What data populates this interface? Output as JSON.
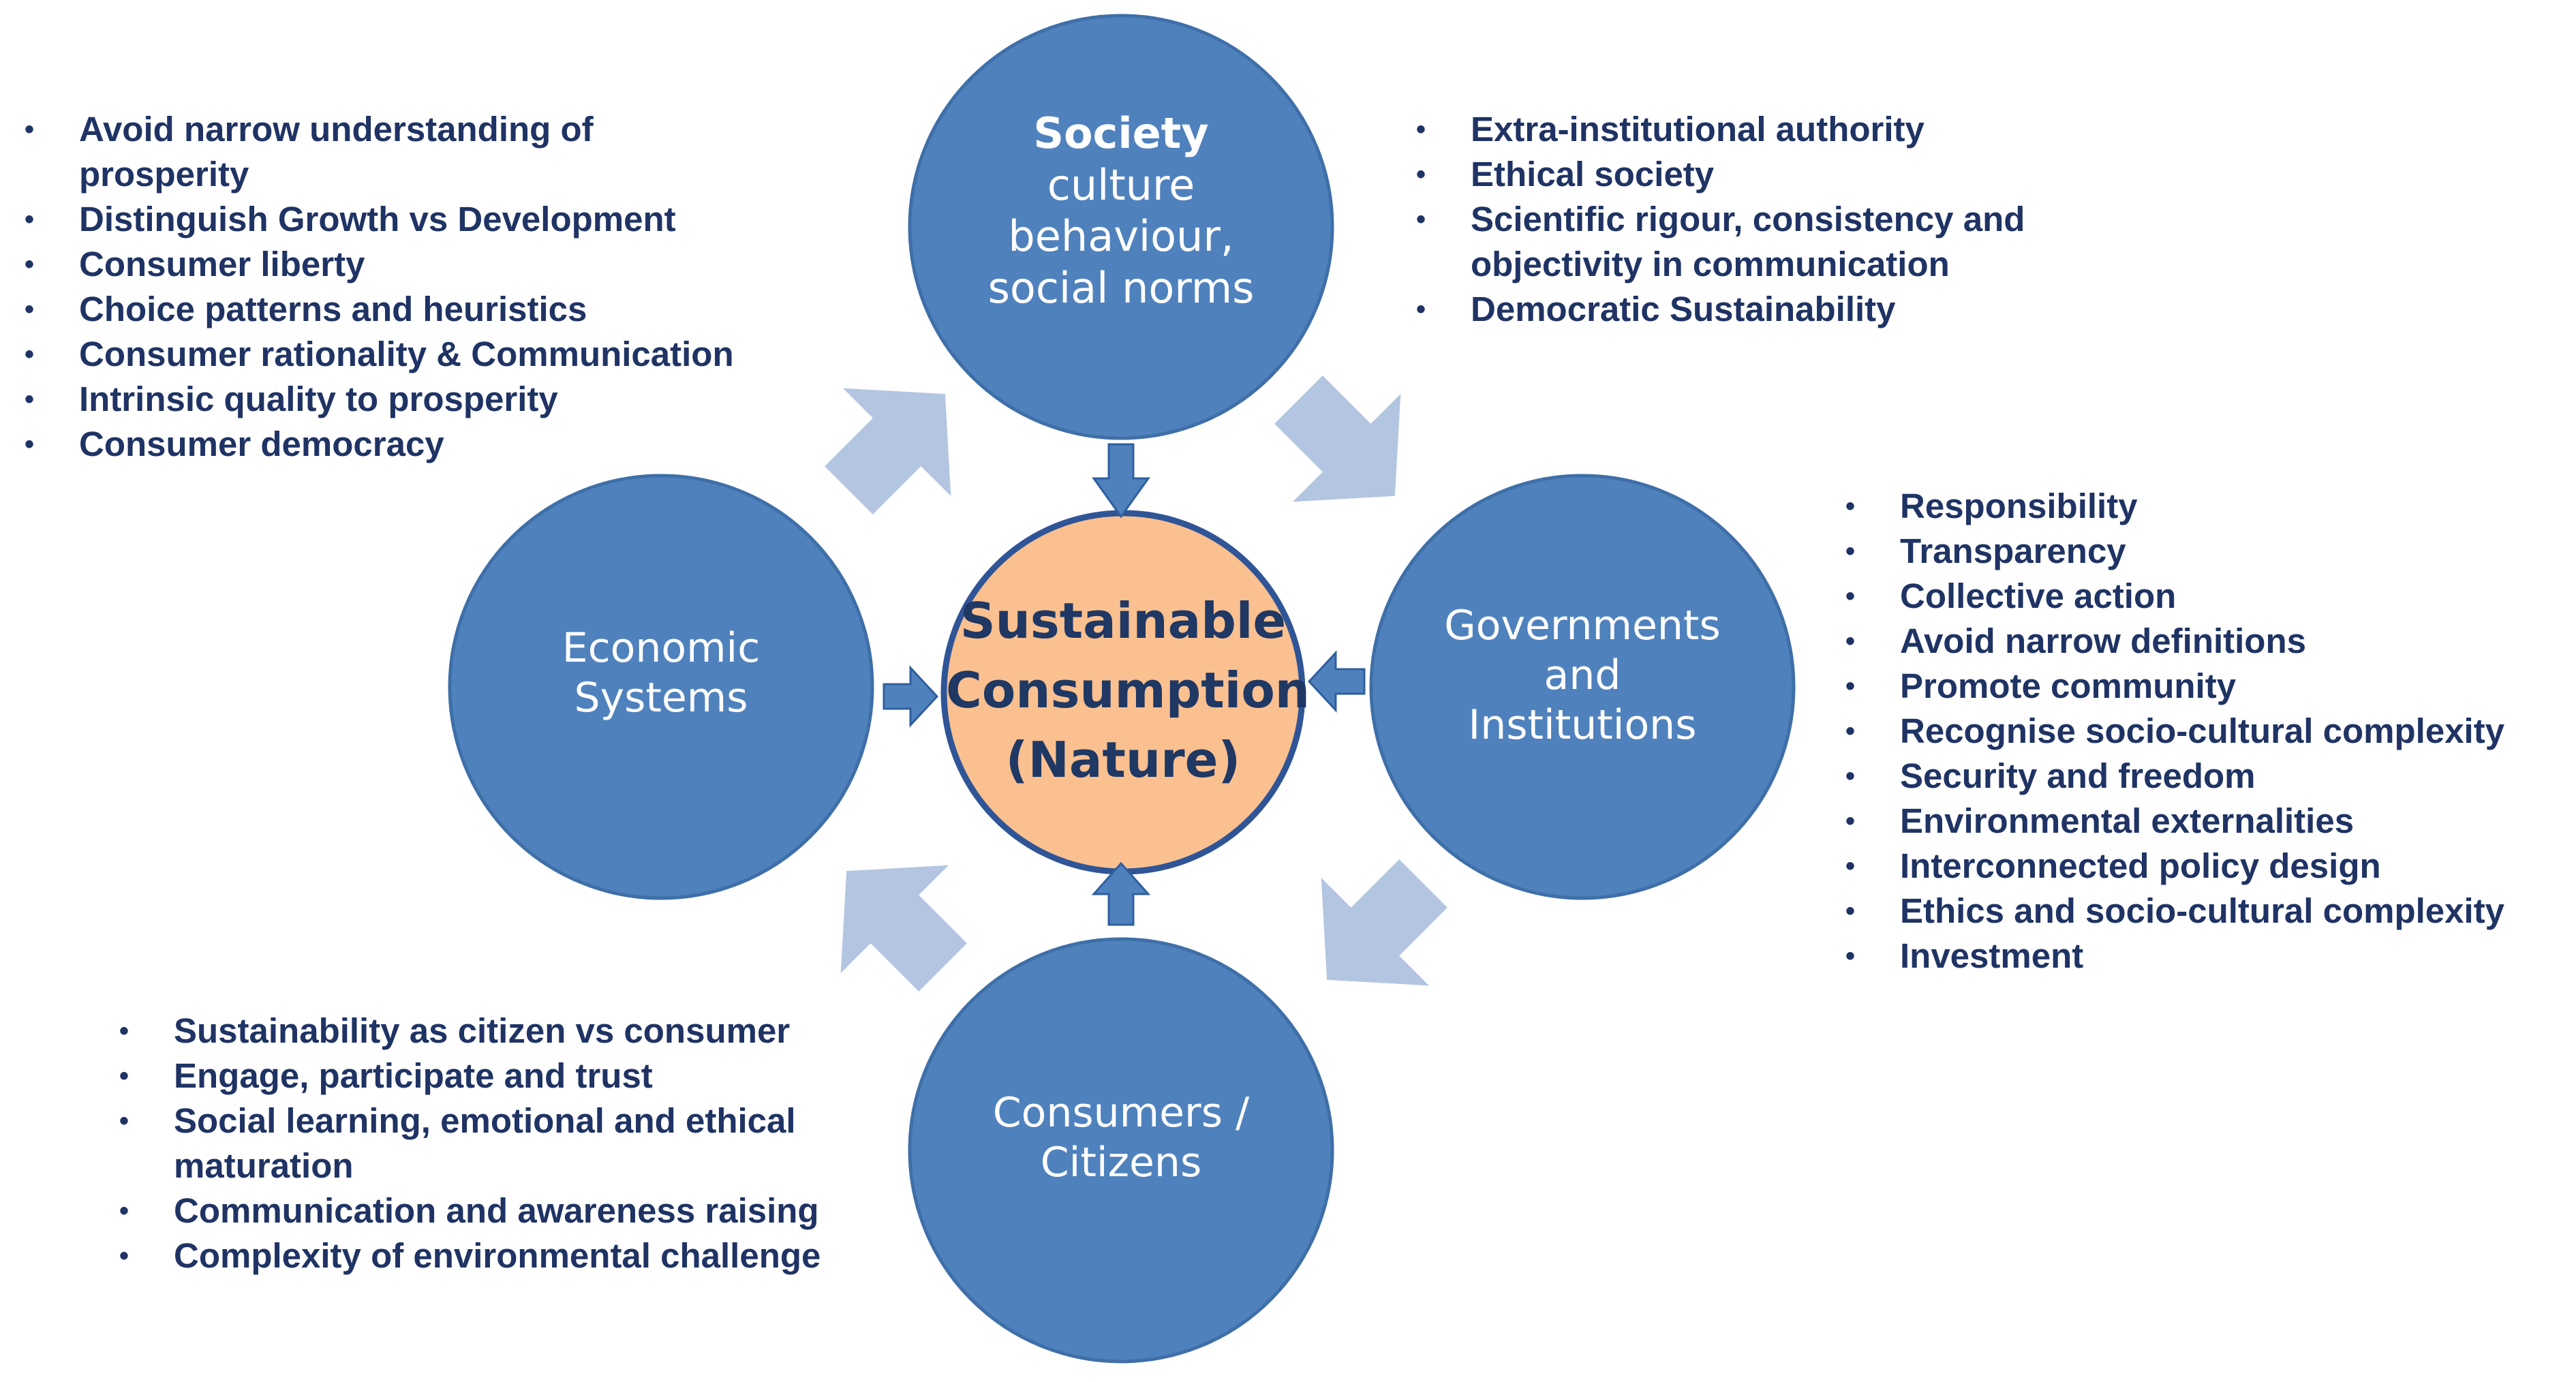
{
  "center": {
    "lines": [
      "Sustainable",
      "Consumption",
      "(Nature)"
    ]
  },
  "circles": {
    "society": {
      "title": "Society",
      "subtitle": [
        "culture",
        "behaviour,",
        "social norms"
      ]
    },
    "economic": {
      "lines": [
        "Economic",
        "Systems"
      ]
    },
    "governments": {
      "lines": [
        "Governments",
        "and",
        "Institutions"
      ]
    },
    "consumers": {
      "lines": [
        "Consumers /",
        "Citizens"
      ]
    }
  },
  "lists": {
    "economic": [
      "Avoid narrow understanding of prosperity",
      "Distinguish Growth vs Development",
      "Consumer liberty",
      "Choice patterns and heuristics",
      "Consumer rationality & Communication",
      "Intrinsic quality to prosperity",
      "Consumer democracy"
    ],
    "society": [
      "Extra-institutional authority",
      "Ethical society",
      "Scientific rigour, consistency and objectivity in communication",
      "Democratic Sustainability"
    ],
    "governments": [
      "Responsibility",
      "Transparency",
      "Collective action",
      "Avoid narrow definitions",
      "Promote community",
      "Recognise socio-cultural complexity",
      "Security and freedom",
      "Environmental externalities",
      "Interconnected policy design",
      "Ethics and socio-cultural complexity",
      "Investment"
    ],
    "consumers": [
      "Sustainability as citizen vs consumer",
      "Engage, participate and trust",
      "Social learning, emotional and ethical maturation",
      "Communication and awareness raising",
      "Complexity of environmental challenge"
    ]
  },
  "colors": {
    "circle_fill": "#4f81bd",
    "circle_stroke": "#3f6fa8",
    "center_fill": "#fac090",
    "center_stroke": "#2f5597",
    "arrow_dark": "#4f81bd",
    "arrow_light": "#b3c5e1",
    "text_dark": "#1f3364"
  }
}
